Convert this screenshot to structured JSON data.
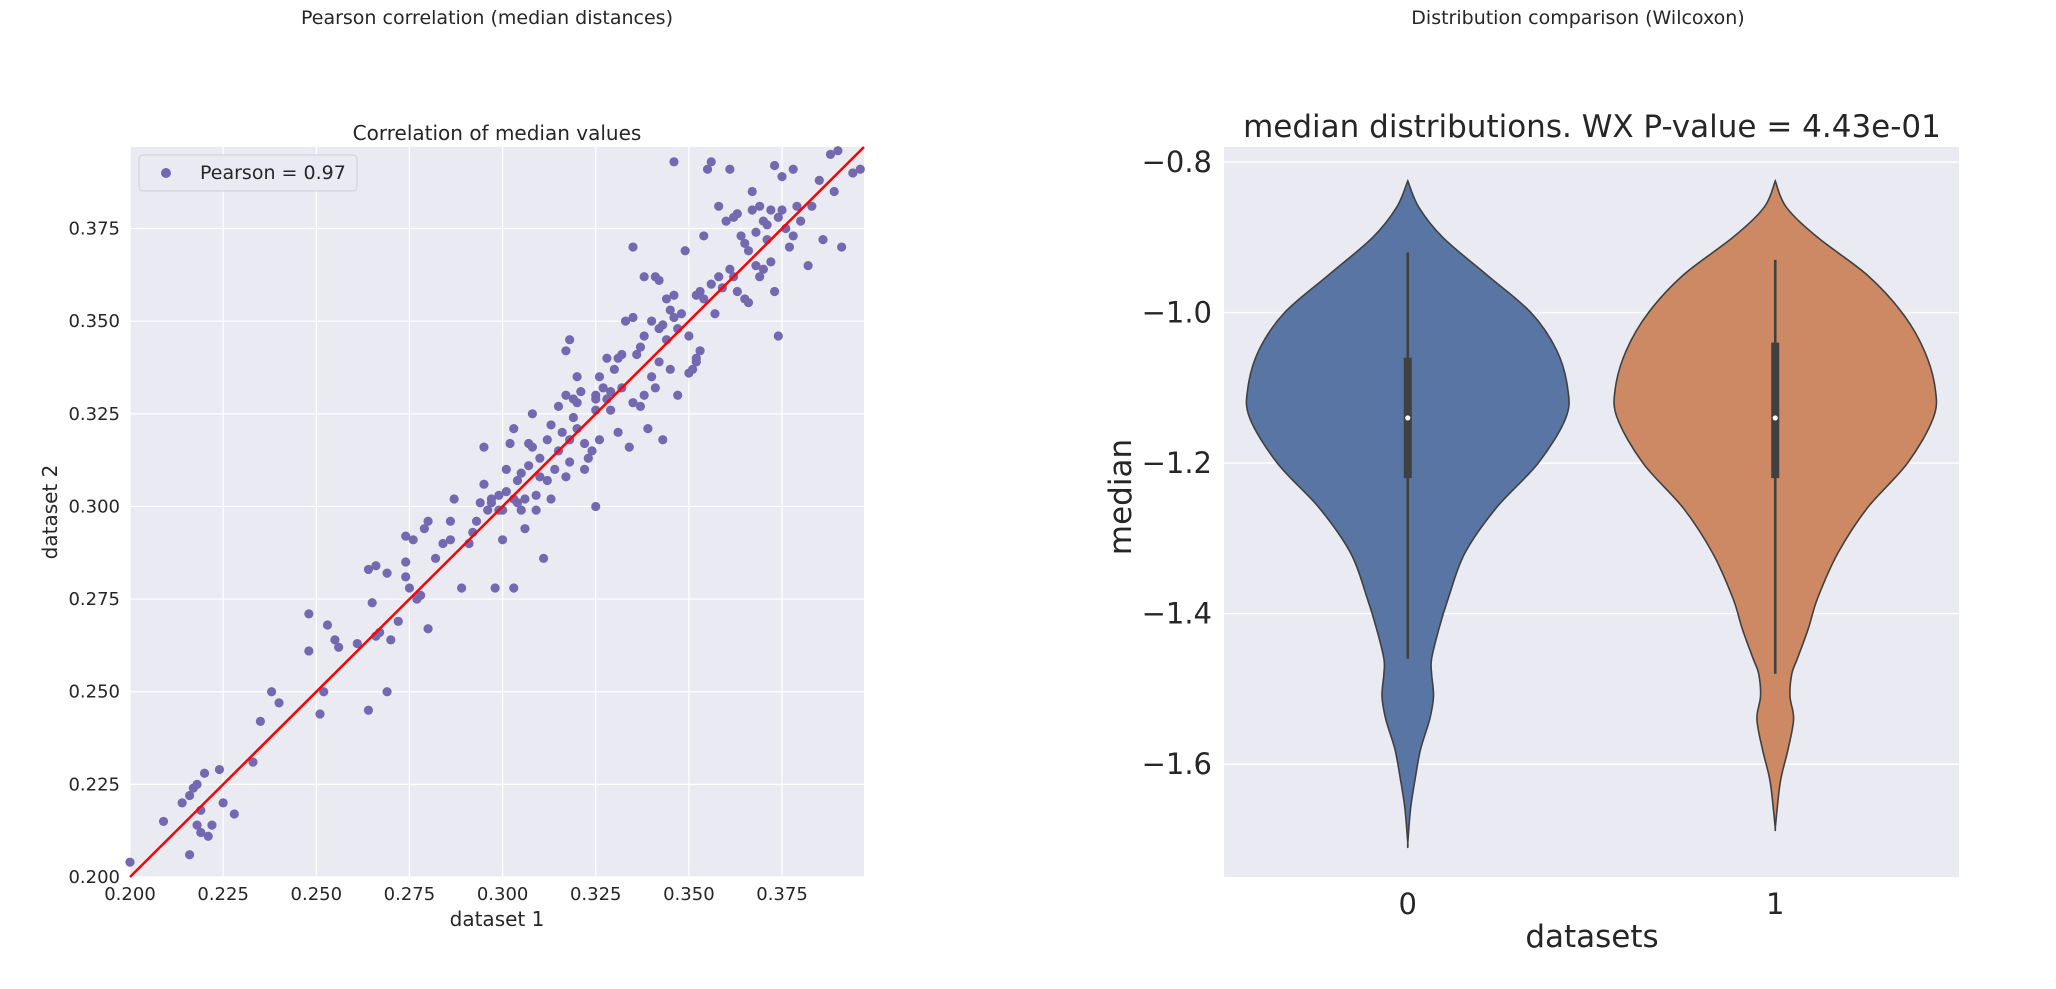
{
  "figure": {
    "left_title": "Pearson correlation (median distances)",
    "right_title": "Distribution comparison (Wilcoxon)"
  },
  "chart_data": [
    {
      "type": "scatter",
      "title": "Correlation of median values",
      "xlabel": "dataset 1",
      "ylabel": "dataset 2",
      "xlim": [
        0.2,
        0.397
      ],
      "ylim": [
        0.2,
        0.397
      ],
      "xticks": [
        "0.200",
        "0.225",
        "0.250",
        "0.275",
        "0.300",
        "0.325",
        "0.350",
        "0.375"
      ],
      "yticks": [
        "0.200",
        "0.225",
        "0.250",
        "0.275",
        "0.300",
        "0.325",
        "0.350",
        "0.375"
      ],
      "grid": true,
      "legend": {
        "position": "top-left",
        "label": "Pearson = 0.97"
      },
      "point_color": "#7468b0",
      "fit_line": {
        "color": "#ff0000",
        "x": [
          0.2,
          0.397
        ],
        "y": [
          0.2,
          0.397
        ]
      },
      "points": [
        [
          0.2,
          0.204
        ],
        [
          0.209,
          0.215
        ],
        [
          0.214,
          0.22
        ],
        [
          0.216,
          0.206
        ],
        [
          0.216,
          0.222
        ],
        [
          0.217,
          0.224
        ],
        [
          0.218,
          0.225
        ],
        [
          0.218,
          0.214
        ],
        [
          0.219,
          0.218
        ],
        [
          0.219,
          0.212
        ],
        [
          0.22,
          0.228
        ],
        [
          0.221,
          0.211
        ],
        [
          0.222,
          0.214
        ],
        [
          0.224,
          0.229
        ],
        [
          0.225,
          0.22
        ],
        [
          0.228,
          0.217
        ],
        [
          0.233,
          0.231
        ],
        [
          0.235,
          0.242
        ],
        [
          0.238,
          0.25
        ],
        [
          0.24,
          0.247
        ],
        [
          0.248,
          0.261
        ],
        [
          0.248,
          0.271
        ],
        [
          0.251,
          0.244
        ],
        [
          0.252,
          0.25
        ],
        [
          0.253,
          0.268
        ],
        [
          0.255,
          0.264
        ],
        [
          0.256,
          0.262
        ],
        [
          0.261,
          0.263
        ],
        [
          0.264,
          0.245
        ],
        [
          0.264,
          0.283
        ],
        [
          0.265,
          0.274
        ],
        [
          0.266,
          0.284
        ],
        [
          0.266,
          0.265
        ],
        [
          0.267,
          0.266
        ],
        [
          0.269,
          0.282
        ],
        [
          0.269,
          0.25
        ],
        [
          0.27,
          0.264
        ],
        [
          0.272,
          0.269
        ],
        [
          0.274,
          0.285
        ],
        [
          0.274,
          0.281
        ],
        [
          0.274,
          0.292
        ],
        [
          0.275,
          0.278
        ],
        [
          0.276,
          0.291
        ],
        [
          0.277,
          0.275
        ],
        [
          0.278,
          0.276
        ],
        [
          0.279,
          0.294
        ],
        [
          0.28,
          0.296
        ],
        [
          0.28,
          0.267
        ],
        [
          0.282,
          0.286
        ],
        [
          0.284,
          0.29
        ],
        [
          0.286,
          0.291
        ],
        [
          0.286,
          0.296
        ],
        [
          0.287,
          0.302
        ],
        [
          0.289,
          0.278
        ],
        [
          0.291,
          0.29
        ],
        [
          0.292,
          0.293
        ],
        [
          0.293,
          0.296
        ],
        [
          0.294,
          0.301
        ],
        [
          0.295,
          0.306
        ],
        [
          0.295,
          0.316
        ],
        [
          0.296,
          0.299
        ],
        [
          0.297,
          0.301
        ],
        [
          0.297,
          0.302
        ],
        [
          0.298,
          0.278
        ],
        [
          0.299,
          0.303
        ],
        [
          0.299,
          0.299
        ],
        [
          0.3,
          0.291
        ],
        [
          0.3,
          0.299
        ],
        [
          0.301,
          0.304
        ],
        [
          0.301,
          0.31
        ],
        [
          0.302,
          0.317
        ],
        [
          0.303,
          0.278
        ],
        [
          0.303,
          0.302
        ],
        [
          0.303,
          0.321
        ],
        [
          0.304,
          0.301
        ],
        [
          0.304,
          0.307
        ],
        [
          0.305,
          0.309
        ],
        [
          0.305,
          0.299
        ],
        [
          0.306,
          0.294
        ],
        [
          0.306,
          0.302
        ],
        [
          0.307,
          0.311
        ],
        [
          0.307,
          0.317
        ],
        [
          0.308,
          0.325
        ],
        [
          0.308,
          0.316
        ],
        [
          0.309,
          0.303
        ],
        [
          0.309,
          0.299
        ],
        [
          0.31,
          0.308
        ],
        [
          0.31,
          0.313
        ],
        [
          0.311,
          0.286
        ],
        [
          0.312,
          0.318
        ],
        [
          0.312,
          0.307
        ],
        [
          0.313,
          0.302
        ],
        [
          0.313,
          0.322
        ],
        [
          0.314,
          0.31
        ],
        [
          0.315,
          0.315
        ],
        [
          0.315,
          0.327
        ],
        [
          0.316,
          0.32
        ],
        [
          0.317,
          0.308
        ],
        [
          0.317,
          0.33
        ],
        [
          0.317,
          0.342
        ],
        [
          0.318,
          0.345
        ],
        [
          0.318,
          0.318
        ],
        [
          0.318,
          0.312
        ],
        [
          0.319,
          0.324
        ],
        [
          0.319,
          0.329
        ],
        [
          0.32,
          0.321
        ],
        [
          0.32,
          0.335
        ],
        [
          0.32,
          0.328
        ],
        [
          0.321,
          0.331
        ],
        [
          0.322,
          0.317
        ],
        [
          0.322,
          0.31
        ],
        [
          0.323,
          0.313
        ],
        [
          0.324,
          0.315
        ],
        [
          0.325,
          0.326
        ],
        [
          0.325,
          0.329
        ],
        [
          0.325,
          0.33
        ],
        [
          0.325,
          0.3
        ],
        [
          0.326,
          0.335
        ],
        [
          0.326,
          0.318
        ],
        [
          0.327,
          0.332
        ],
        [
          0.328,
          0.329
        ],
        [
          0.328,
          0.34
        ],
        [
          0.329,
          0.331
        ],
        [
          0.329,
          0.326
        ],
        [
          0.33,
          0.337
        ],
        [
          0.331,
          0.34
        ],
        [
          0.331,
          0.32
        ],
        [
          0.332,
          0.341
        ],
        [
          0.332,
          0.332
        ],
        [
          0.333,
          0.35
        ],
        [
          0.334,
          0.316
        ],
        [
          0.335,
          0.328
        ],
        [
          0.335,
          0.37
        ],
        [
          0.335,
          0.351
        ],
        [
          0.336,
          0.341
        ],
        [
          0.337,
          0.327
        ],
        [
          0.337,
          0.343
        ],
        [
          0.338,
          0.346
        ],
        [
          0.338,
          0.33
        ],
        [
          0.338,
          0.362
        ],
        [
          0.339,
          0.321
        ],
        [
          0.34,
          0.335
        ],
        [
          0.34,
          0.35
        ],
        [
          0.341,
          0.362
        ],
        [
          0.341,
          0.332
        ],
        [
          0.342,
          0.339
        ],
        [
          0.342,
          0.348
        ],
        [
          0.342,
          0.361
        ],
        [
          0.343,
          0.349
        ],
        [
          0.343,
          0.318
        ],
        [
          0.344,
          0.345
        ],
        [
          0.344,
          0.356
        ],
        [
          0.345,
          0.353
        ],
        [
          0.345,
          0.337
        ],
        [
          0.346,
          0.357
        ],
        [
          0.346,
          0.351
        ],
        [
          0.346,
          0.393
        ],
        [
          0.347,
          0.348
        ],
        [
          0.347,
          0.33
        ],
        [
          0.348,
          0.352
        ],
        [
          0.349,
          0.369
        ],
        [
          0.35,
          0.346
        ],
        [
          0.35,
          0.336
        ],
        [
          0.351,
          0.337
        ],
        [
          0.352,
          0.339
        ],
        [
          0.352,
          0.357
        ],
        [
          0.352,
          0.34
        ],
        [
          0.353,
          0.358
        ],
        [
          0.353,
          0.342
        ],
        [
          0.354,
          0.356
        ],
        [
          0.354,
          0.373
        ],
        [
          0.355,
          0.391
        ],
        [
          0.356,
          0.36
        ],
        [
          0.356,
          0.393
        ],
        [
          0.357,
          0.352
        ],
        [
          0.358,
          0.362
        ],
        [
          0.358,
          0.381
        ],
        [
          0.359,
          0.359
        ],
        [
          0.36,
          0.377
        ],
        [
          0.361,
          0.391
        ],
        [
          0.361,
          0.364
        ],
        [
          0.362,
          0.378
        ],
        [
          0.362,
          0.362
        ],
        [
          0.363,
          0.379
        ],
        [
          0.363,
          0.358
        ],
        [
          0.364,
          0.373
        ],
        [
          0.365,
          0.356
        ],
        [
          0.365,
          0.371
        ],
        [
          0.366,
          0.369
        ],
        [
          0.366,
          0.355
        ],
        [
          0.367,
          0.38
        ],
        [
          0.367,
          0.385
        ],
        [
          0.368,
          0.374
        ],
        [
          0.368,
          0.365
        ],
        [
          0.369,
          0.362
        ],
        [
          0.369,
          0.381
        ],
        [
          0.37,
          0.364
        ],
        [
          0.37,
          0.377
        ],
        [
          0.371,
          0.372
        ],
        [
          0.371,
          0.376
        ],
        [
          0.372,
          0.366
        ],
        [
          0.372,
          0.38
        ],
        [
          0.373,
          0.358
        ],
        [
          0.373,
          0.392
        ],
        [
          0.374,
          0.346
        ],
        [
          0.374,
          0.378
        ],
        [
          0.375,
          0.389
        ],
        [
          0.375,
          0.38
        ],
        [
          0.376,
          0.375
        ],
        [
          0.377,
          0.37
        ],
        [
          0.378,
          0.391
        ],
        [
          0.378,
          0.373
        ],
        [
          0.379,
          0.381
        ],
        [
          0.38,
          0.377
        ],
        [
          0.382,
          0.365
        ],
        [
          0.383,
          0.381
        ],
        [
          0.385,
          0.388
        ],
        [
          0.386,
          0.372
        ],
        [
          0.388,
          0.395
        ],
        [
          0.389,
          0.385
        ],
        [
          0.39,
          0.396
        ],
        [
          0.391,
          0.37
        ],
        [
          0.394,
          0.39
        ],
        [
          0.396,
          0.391
        ]
      ]
    },
    {
      "type": "violin",
      "title": "median distributions. WX P-value = 4.43e-01",
      "xlabel": "datasets",
      "ylabel": "median",
      "ylim": [
        -1.75,
        -0.78
      ],
      "yticks": [
        -0.8,
        -1.0,
        -1.2,
        -1.4,
        -1.6
      ],
      "ytick_labels": [
        "−0.8",
        "−1.0",
        "−1.2",
        "−1.4",
        "−1.6"
      ],
      "grid": true,
      "categories": [
        "0",
        "1"
      ],
      "series": [
        {
          "color": "#5875a4",
          "whisker": [
            -0.92,
            -1.46
          ],
          "box": [
            -1.06,
            -1.22
          ],
          "median": -1.14,
          "kde_y": [
            -0.825,
            -0.86,
            -0.9,
            -0.95,
            -1.0,
            -1.05,
            -1.1,
            -1.14,
            -1.2,
            -1.26,
            -1.32,
            -1.38,
            -1.42,
            -1.46,
            -1.48,
            -1.51,
            -1.54,
            -1.58,
            -1.62,
            -1.66,
            -1.705
          ],
          "kde_halfwidth": [
            0.0,
            0.06,
            0.19,
            0.43,
            0.67,
            0.81,
            0.87,
            0.86,
            0.71,
            0.48,
            0.31,
            0.22,
            0.17,
            0.13,
            0.13,
            0.14,
            0.12,
            0.07,
            0.04,
            0.015,
            0.0
          ]
        },
        {
          "color": "#cc8963",
          "whisker": [
            -0.93,
            -1.48
          ],
          "box": [
            -1.04,
            -1.22
          ],
          "median": -1.14,
          "kde_y": [
            -0.825,
            -0.86,
            -0.9,
            -0.95,
            -1.0,
            -1.05,
            -1.1,
            -1.14,
            -1.2,
            -1.26,
            -1.32,
            -1.38,
            -1.42,
            -1.46,
            -1.48,
            -1.51,
            -1.54,
            -1.58,
            -1.62,
            -1.66,
            -1.685
          ],
          "kde_halfwidth": [
            0.0,
            0.06,
            0.23,
            0.5,
            0.69,
            0.81,
            0.87,
            0.86,
            0.72,
            0.5,
            0.34,
            0.23,
            0.18,
            0.12,
            0.09,
            0.08,
            0.1,
            0.07,
            0.03,
            0.01,
            0.0
          ]
        }
      ]
    }
  ]
}
